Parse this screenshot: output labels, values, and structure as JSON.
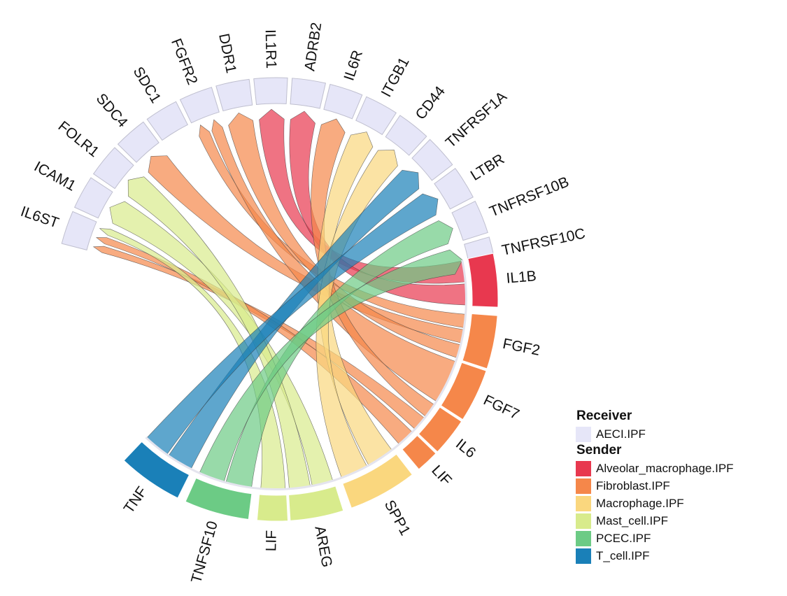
{
  "chart_data": {
    "type": "chord",
    "title": "",
    "receivers": {
      "legend_title": "Receiver",
      "group": "AECI.IPF",
      "color": "#E6E6F8",
      "sectors": [
        "IL6ST",
        "ICAM1",
        "FOLR1",
        "SDC4",
        "SDC1",
        "FGFR2",
        "DDR1",
        "IL1R1",
        "ADRB2",
        "IL6R",
        "ITGB1",
        "CD44",
        "TNFRSF1A",
        "LTBR",
        "TNFRSF10B",
        "TNFRSF10C"
      ]
    },
    "senders": {
      "legend_title": "Sender",
      "groups": [
        {
          "name": "Alveolar_macrophage.IPF",
          "color": "#E8384F"
        },
        {
          "name": "Fibroblast.IPF",
          "color": "#F5874A"
        },
        {
          "name": "Macrophage.IPF",
          "color": "#FAD77E"
        },
        {
          "name": "Mast_cell.IPF",
          "color": "#D8EB8C"
        },
        {
          "name": "PCEC.IPF",
          "color": "#6CCB85"
        },
        {
          "name": "T_cell.IPF",
          "color": "#1A80B8"
        }
      ],
      "sectors": [
        {
          "label": "IL1B",
          "group": "Alveolar_macrophage.IPF"
        },
        {
          "label": "FGF2",
          "group": "Fibroblast.IPF"
        },
        {
          "label": "FGF7",
          "group": "Fibroblast.IPF"
        },
        {
          "label": "IL6",
          "group": "Fibroblast.IPF"
        },
        {
          "label": "LIF",
          "group": "Fibroblast.IPF"
        },
        {
          "label": "SPP1",
          "group": "Macrophage.IPF"
        },
        {
          "label": "AREG",
          "group": "Mast_cell.IPF"
        },
        {
          "label": "LIF",
          "group": "Mast_cell.IPF"
        },
        {
          "label": "TNFSF10",
          "group": "PCEC.IPF"
        },
        {
          "label": "TNF",
          "group": "T_cell.IPF"
        }
      ]
    },
    "links": [
      {
        "from": "IL1B",
        "to": "IL1R1"
      },
      {
        "from": "IL1B",
        "to": "ADRB2"
      },
      {
        "from": "FGF2",
        "to": "FGFR2"
      },
      {
        "from": "FGF2",
        "to": "SDC4"
      },
      {
        "from": "FGF2",
        "to": "DDR1"
      },
      {
        "from": "FGF7",
        "to": "FGFR2"
      },
      {
        "from": "IL6",
        "to": "IL6R"
      },
      {
        "from": "IL6",
        "to": "IL6ST"
      },
      {
        "from": "LIF",
        "to": "IL6ST"
      },
      {
        "from": "SPP1",
        "to": "ITGB1"
      },
      {
        "from": "SPP1",
        "to": "CD44"
      },
      {
        "from": "AREG",
        "to": "ICAM1"
      },
      {
        "from": "AREG",
        "to": "FOLR1"
      },
      {
        "from": "LIF",
        "to": "IL6ST"
      },
      {
        "from": "TNFSF10",
        "to": "TNFRSF10B"
      },
      {
        "from": "TNFSF10",
        "to": "TNFRSF10C"
      },
      {
        "from": "TNF",
        "to": "TNFRSF1A"
      },
      {
        "from": "TNF",
        "to": "LTBR"
      }
    ]
  }
}
